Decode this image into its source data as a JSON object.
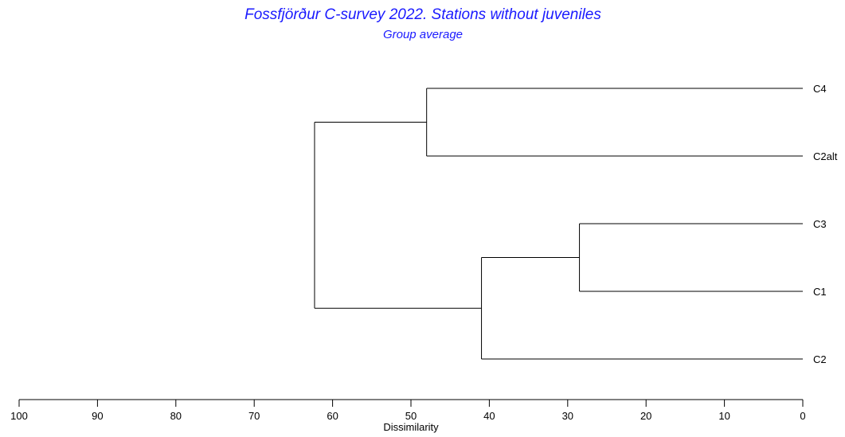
{
  "chart_data": {
    "type": "dendrogram",
    "title": "Fossfjörður C-survey 2022. Stations without juveniles",
    "subtitle": "Group average",
    "title_color": "#1a1aff",
    "line_color": "#000000",
    "xlabel": "Dissimilarity",
    "xlim": [
      100,
      0
    ],
    "ticks": [
      100,
      90,
      80,
      70,
      60,
      50,
      40,
      30,
      20,
      10,
      0
    ],
    "tick_labels": [
      "100",
      "90",
      "80",
      "70",
      "60",
      "50",
      "40",
      "30",
      "20",
      "10",
      "0"
    ],
    "leaves": [
      "C4",
      "C2alt",
      "C3",
      "C1",
      "C2"
    ],
    "merges": [
      {
        "id": "m1",
        "children": [
          "C3",
          "C1"
        ],
        "height": 28.5
      },
      {
        "id": "m2",
        "children": [
          "m1",
          "C2"
        ],
        "height": 41.0
      },
      {
        "id": "m3",
        "children": [
          "C4",
          "C2alt"
        ],
        "height": 48.0
      },
      {
        "id": "m4",
        "children": [
          "m3",
          "m2"
        ],
        "height": 62.3
      }
    ]
  }
}
